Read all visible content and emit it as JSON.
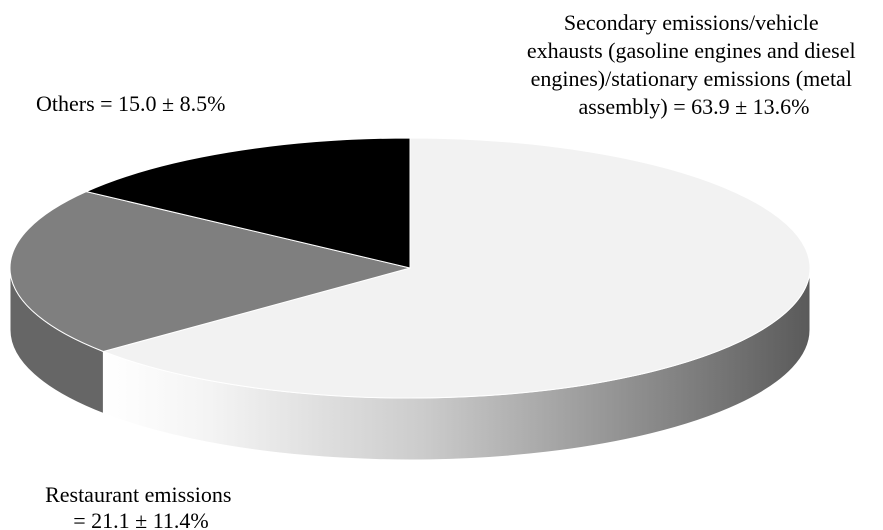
{
  "chart_data": {
    "type": "pie",
    "style": "3d",
    "slices": [
      {
        "label_lines": [
          "Secondary emissions/vehicle",
          "exhausts (gasoline engines and diesel",
          "engines)/stationary emissions (metal",
          "assembly) = 63.9 ± 13.6%"
        ],
        "value": 63.9,
        "error": 13.6,
        "color": "#f2f2f2"
      },
      {
        "label_lines": [
          "Restaurant emissions",
          "= 21.1 ± 11.4%"
        ],
        "value": 21.1,
        "error": 11.4,
        "color": "#7f7f7f"
      },
      {
        "label_lines": [
          "Others = 15.0 ± 8.5%"
        ],
        "value": 15.0,
        "error": 8.5,
        "color": "#000000"
      }
    ]
  }
}
